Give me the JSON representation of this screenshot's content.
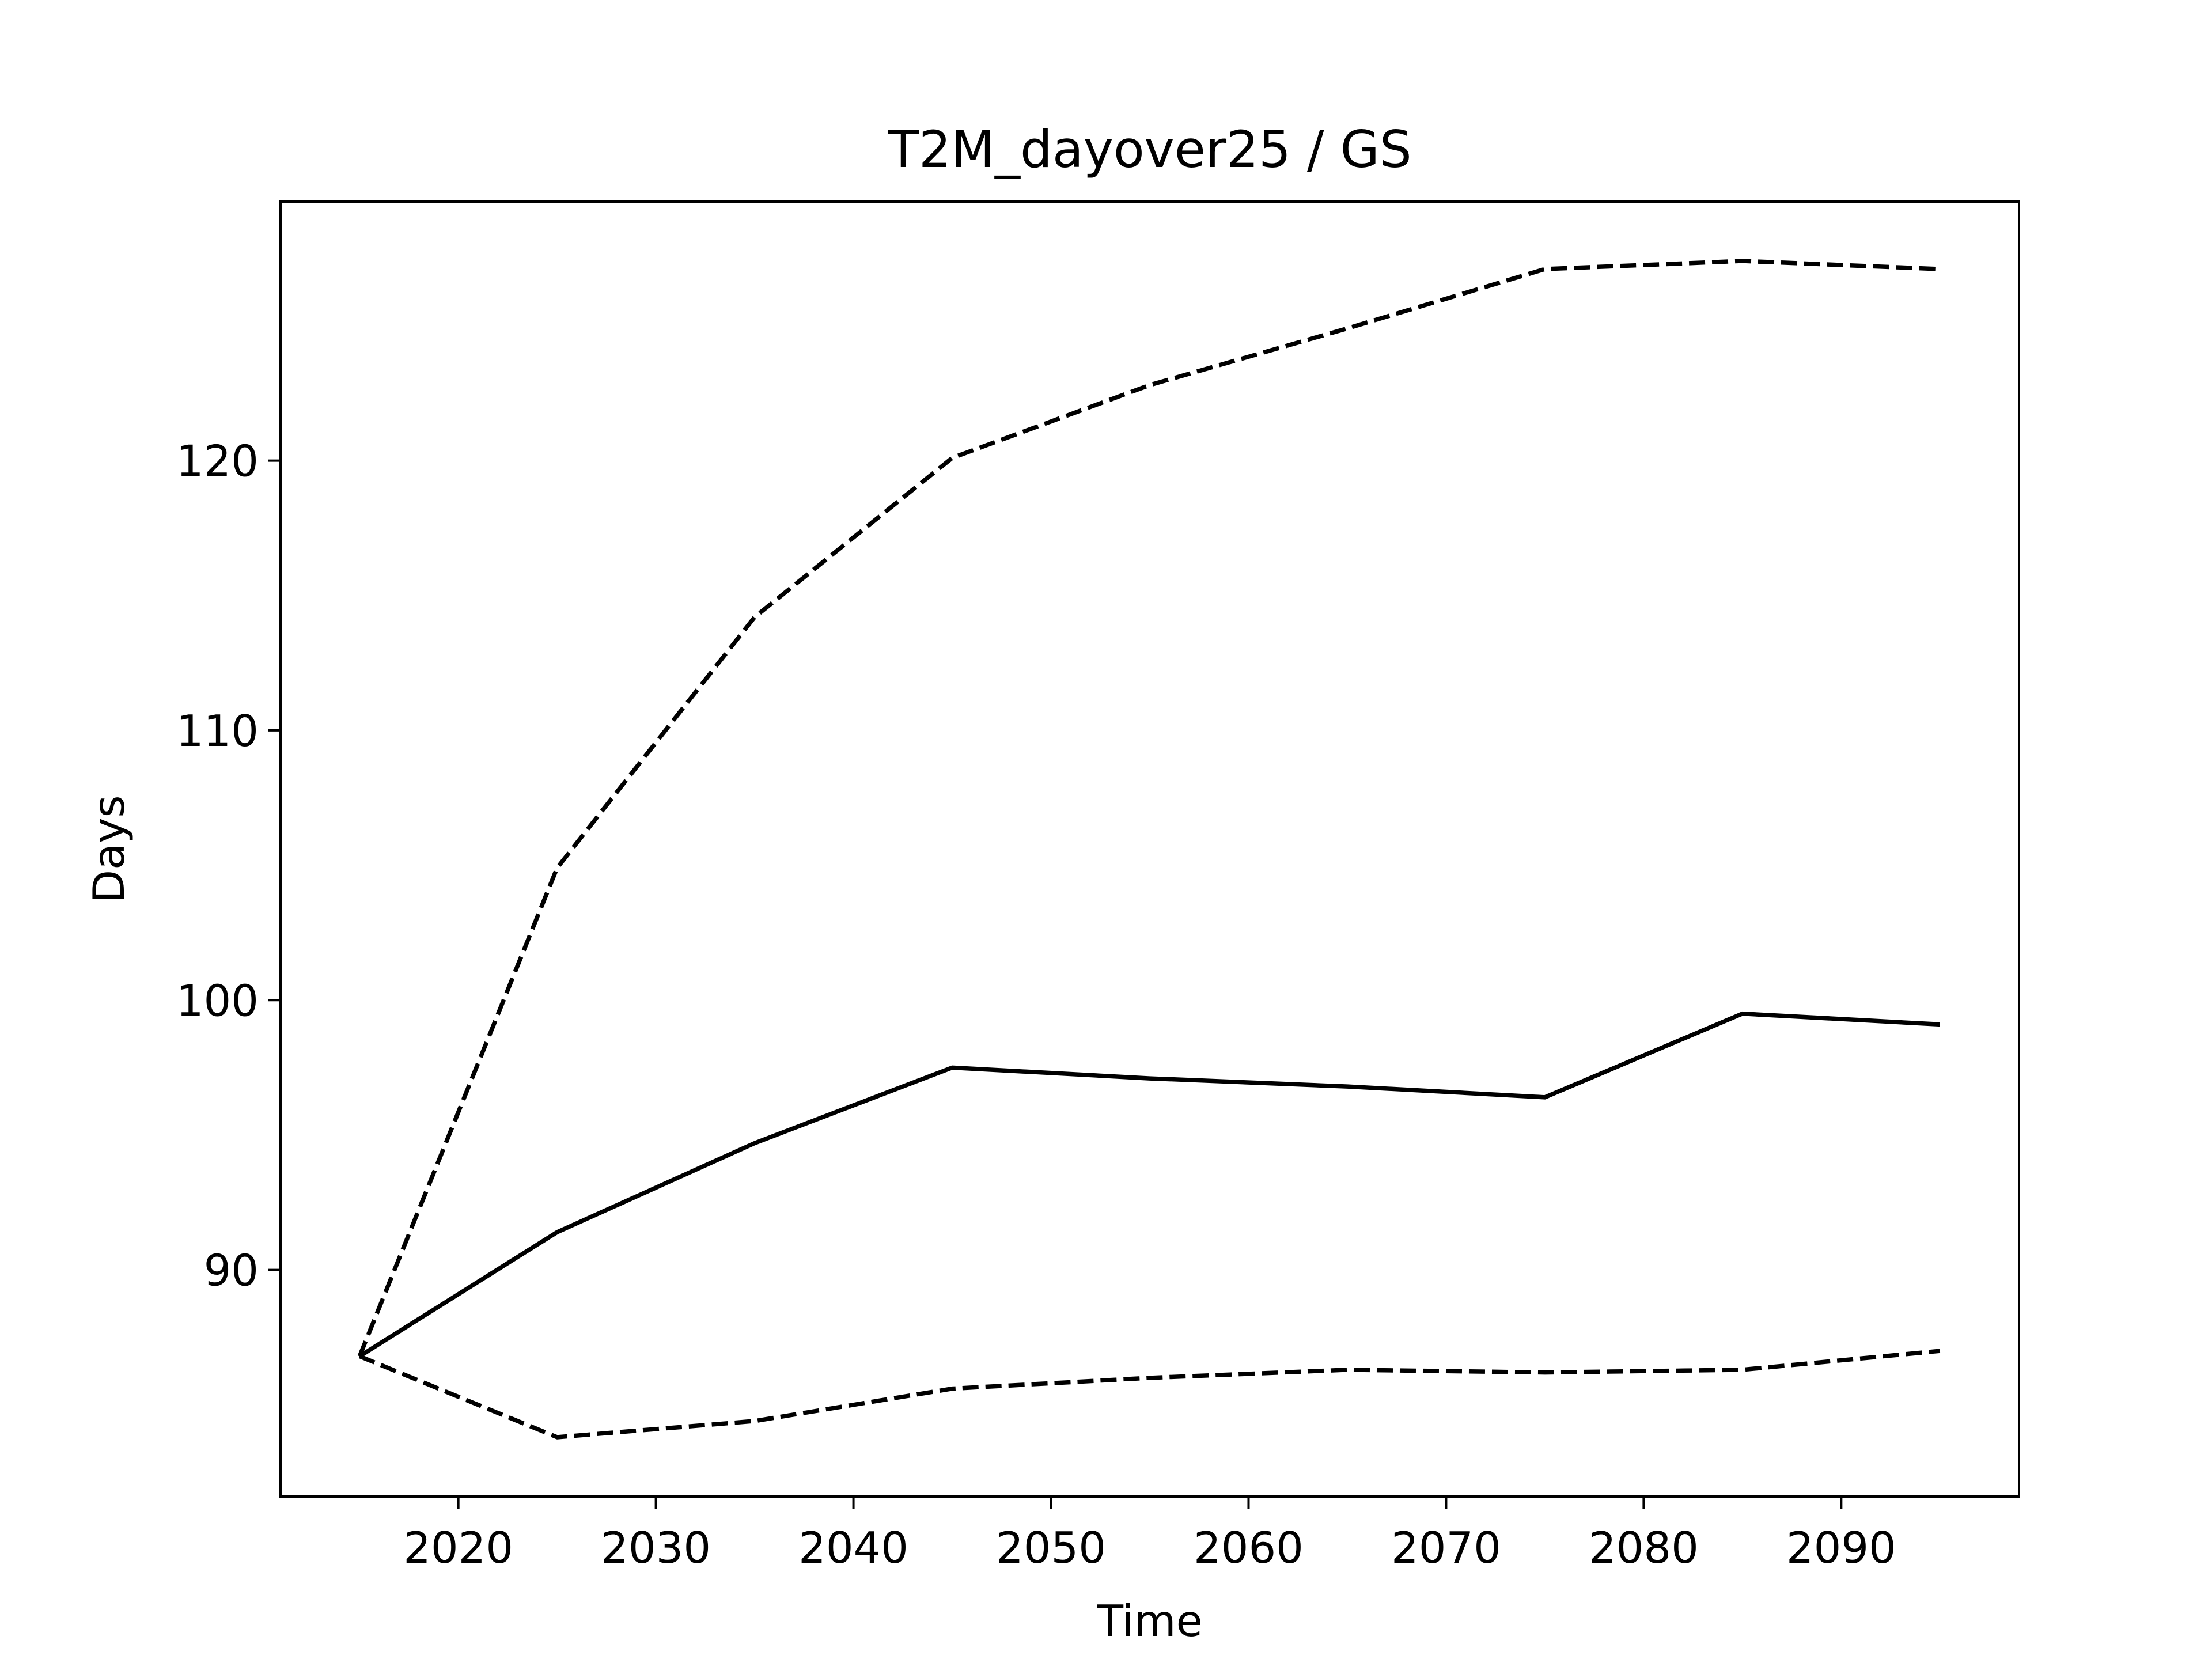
{
  "chart_data": {
    "type": "line",
    "title": "T2M_dayover25 / GS",
    "x_label": "Time",
    "y_label": "Days",
    "x": [
      2015,
      2025,
      2035,
      2045,
      2055,
      2065,
      2075,
      2085,
      2095
    ],
    "series": [
      {
        "color": "#000000",
        "linestyle": "solid",
        "values": [
          86.8,
          91.4,
          94.7,
          97.5,
          97.1,
          96.8,
          96.4,
          99.5,
          99.1
        ]
      },
      {
        "color": "#000000",
        "linestyle": "dashed",
        "values": [
          86.8,
          104.9,
          114.2,
          120.1,
          122.8,
          124.9,
          127.1,
          127.4,
          127.1
        ]
      },
      {
        "color": "#000000",
        "linestyle": "dashed",
        "values": [
          86.8,
          83.8,
          84.4,
          85.6,
          86.0,
          86.3,
          86.2,
          86.3,
          87.0
        ]
      }
    ],
    "xlim": [
      2011,
      2099
    ],
    "ylim": [
      81.6,
      129.6
    ],
    "xticks": [
      2020,
      2030,
      2040,
      2050,
      2060,
      2070,
      2080,
      2090
    ],
    "yticks": [
      90,
      100,
      110,
      120
    ],
    "grid": false
  }
}
